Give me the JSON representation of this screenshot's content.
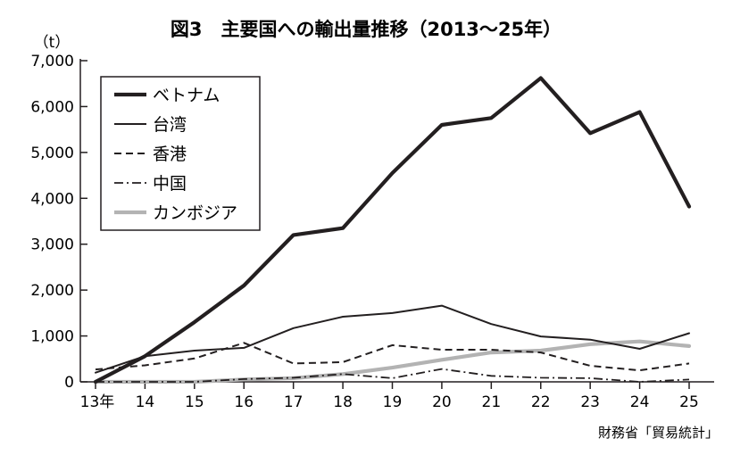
{
  "chart_data": {
    "type": "line",
    "title": "図3　主要国への輸出量推移（2013〜25年）",
    "y_unit": "（t）",
    "source": "財務省「貿易統計」",
    "x_tick_labels": [
      "13年",
      "14",
      "15",
      "16",
      "17",
      "18",
      "19",
      "20",
      "21",
      "22",
      "23",
      "24",
      "25"
    ],
    "y_tick_labels": [
      "0",
      "1,000",
      "2,000",
      "3,000",
      "4,000",
      "5,000",
      "6,000",
      "7,000"
    ],
    "x": [
      2013,
      2014,
      2015,
      2016,
      2017,
      2018,
      2019,
      2020,
      2021,
      2022,
      2023,
      2024,
      2025
    ],
    "ylim": [
      0,
      7000
    ],
    "grid": false,
    "legend_position": "top-left",
    "series": [
      {
        "name": "ベトナム",
        "style": "thick-solid",
        "color": "#231f20",
        "values": [
          0,
          560,
          1300,
          2100,
          3200,
          3350,
          4550,
          5600,
          5750,
          6620,
          5420,
          5880,
          3820
        ]
      },
      {
        "name": "台湾",
        "style": "solid",
        "color": "#231f20",
        "values": [
          200,
          560,
          680,
          740,
          1170,
          1420,
          1500,
          1660,
          1260,
          990,
          920,
          720,
          1060
        ]
      },
      {
        "name": "香港",
        "style": "dashed",
        "color": "#231f20",
        "values": [
          270,
          360,
          510,
          850,
          400,
          430,
          800,
          700,
          700,
          640,
          350,
          250,
          400
        ]
      },
      {
        "name": "中国",
        "style": "dash-dot",
        "color": "#231f20",
        "values": [
          0,
          0,
          0,
          60,
          90,
          170,
          80,
          280,
          130,
          90,
          80,
          0,
          50
        ]
      },
      {
        "name": "カンボジア",
        "style": "thick-gray",
        "color": "#b3b3b3",
        "values": [
          0,
          0,
          0,
          50,
          80,
          170,
          310,
          480,
          640,
          680,
          820,
          880,
          780
        ]
      }
    ]
  }
}
